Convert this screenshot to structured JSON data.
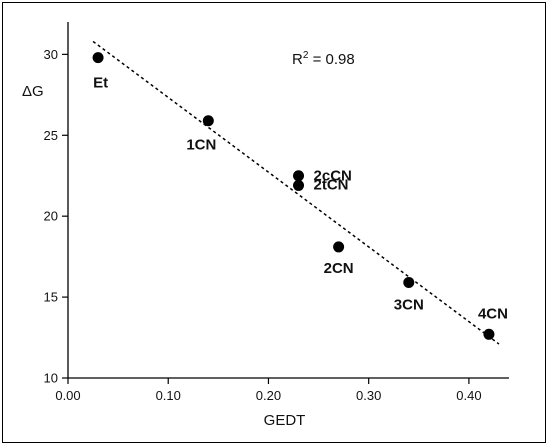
{
  "chart_data": {
    "type": "scatter",
    "title": "",
    "xlabel": "GEDT",
    "ylabel": "ΔG",
    "xlim": [
      0.0,
      0.44
    ],
    "ylim": [
      10,
      32
    ],
    "x_ticks": [
      0.0,
      0.1,
      0.2,
      0.3,
      0.4
    ],
    "x_tick_labels": [
      "0.00",
      "0.10",
      "0.20",
      "0.30",
      "0.40"
    ],
    "y_ticks": [
      10,
      15,
      20,
      25,
      30
    ],
    "y_tick_labels": [
      "10",
      "15",
      "20",
      "25",
      "30"
    ],
    "grid": false,
    "annotation": {
      "text_main": "R",
      "sup": "2",
      "text_rest": " = 0.98"
    },
    "points": [
      {
        "label": "Et",
        "x": 0.03,
        "y": 29.8
      },
      {
        "label": "1CN",
        "x": 0.14,
        "y": 25.9
      },
      {
        "label": "2cCN",
        "x": 0.23,
        "y": 22.5
      },
      {
        "label": "2tCN",
        "x": 0.23,
        "y": 21.9
      },
      {
        "label": "2CN",
        "x": 0.27,
        "y": 18.1
      },
      {
        "label": "3CN",
        "x": 0.34,
        "y": 15.9
      },
      {
        "label": "4CN",
        "x": 0.42,
        "y": 12.7
      }
    ],
    "trendline": {
      "style": "dotted",
      "x": [
        0.025,
        0.43
      ],
      "y": [
        30.8,
        12.1
      ]
    }
  }
}
